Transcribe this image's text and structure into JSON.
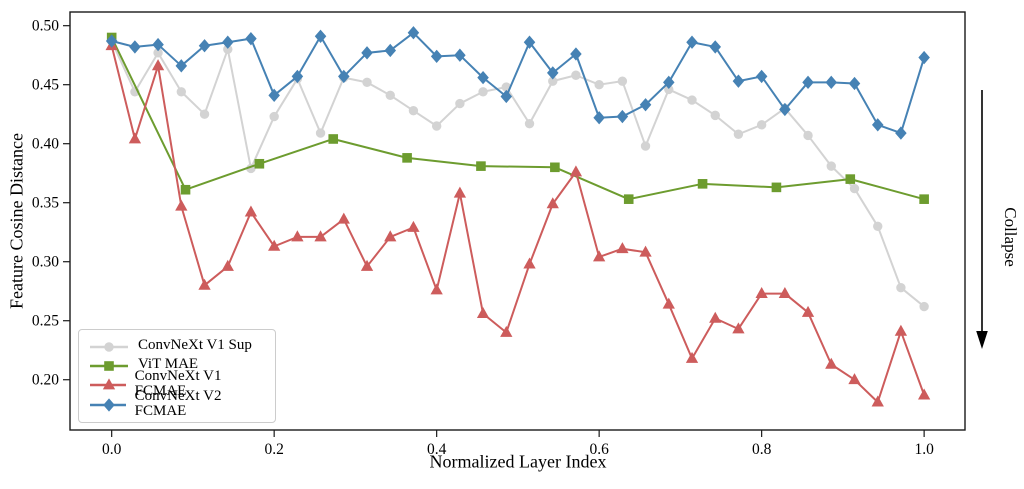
{
  "figure": {
    "ylabel": "Feature Cosine Distance",
    "xlabel": "Normalized Layer Index",
    "collapse_label": "Collapse"
  },
  "chart_data": {
    "type": "line",
    "title": "",
    "xlabel": "Normalized Layer Index",
    "ylabel": "Feature Cosine Distance",
    "xlim": [
      -0.0513,
      1.0503
    ],
    "ylim": [
      0.1574,
      0.5116
    ],
    "grid": false,
    "legend_position": "lower left",
    "annotation": {
      "text": "Collapse",
      "arrow_direction": "down",
      "side": "right"
    },
    "axis_color": "#1a1a1a",
    "xticks": {
      "values": [
        0.0,
        0.2,
        0.4,
        0.6,
        0.8,
        1.0
      ],
      "labels": [
        "0.0",
        "0.2",
        "0.4",
        "0.6",
        "0.8",
        "1.0"
      ]
    },
    "yticks": {
      "values": [
        0.2,
        0.25,
        0.3,
        0.35,
        0.4,
        0.45,
        0.5
      ],
      "labels": [
        "0.20",
        "0.25",
        "0.30",
        "0.35",
        "0.40",
        "0.45",
        "0.50"
      ]
    },
    "series": [
      {
        "name": "ConvNeXt V1 Sup",
        "color": "#d3d3d3",
        "marker": "circle",
        "x": [
          0.0,
          0.0286,
          0.0571,
          0.0857,
          0.1143,
          0.1429,
          0.1714,
          0.2,
          0.2286,
          0.2571,
          0.2857,
          0.3143,
          0.3429,
          0.3714,
          0.4,
          0.4286,
          0.4571,
          0.4857,
          0.5143,
          0.5429,
          0.5714,
          0.6,
          0.6286,
          0.6571,
          0.6857,
          0.7143,
          0.7429,
          0.7714,
          0.8,
          0.8286,
          0.8571,
          0.8857,
          0.9143,
          0.9429,
          0.9714,
          1.0
        ],
        "y": [
          0.487,
          0.444,
          0.477,
          0.444,
          0.425,
          0.48,
          0.379,
          0.423,
          0.455,
          0.409,
          0.456,
          0.452,
          0.441,
          0.428,
          0.415,
          0.434,
          0.444,
          0.448,
          0.417,
          0.453,
          0.458,
          0.45,
          0.453,
          0.398,
          0.446,
          0.437,
          0.424,
          0.408,
          0.416,
          0.43,
          0.407,
          0.381,
          0.362,
          0.33,
          0.278,
          0.262
        ]
      },
      {
        "name": "ViT MAE",
        "color": "#6d9c2f",
        "marker": "square",
        "x": [
          0.0,
          0.0909,
          0.1818,
          0.2727,
          0.3636,
          0.4545,
          0.5455,
          0.6364,
          0.7273,
          0.8182,
          0.9091,
          1.0
        ],
        "y": [
          0.49,
          0.361,
          0.383,
          0.404,
          0.388,
          0.381,
          0.38,
          0.353,
          0.366,
          0.363,
          0.37,
          0.353
        ]
      },
      {
        "name": "ConvNeXt V1 FCMAE",
        "color": "#cd5c5c",
        "marker": "triangle",
        "x": [
          0.0,
          0.0286,
          0.0571,
          0.0857,
          0.1143,
          0.1429,
          0.1714,
          0.2,
          0.2286,
          0.2571,
          0.2857,
          0.3143,
          0.3429,
          0.3714,
          0.4,
          0.4286,
          0.4571,
          0.4857,
          0.5143,
          0.5429,
          0.5714,
          0.6,
          0.6286,
          0.6571,
          0.6857,
          0.7143,
          0.7429,
          0.7714,
          0.8,
          0.8286,
          0.8571,
          0.8857,
          0.9143,
          0.9429,
          0.9714,
          1.0
        ],
        "y": [
          0.483,
          0.404,
          0.466,
          0.347,
          0.28,
          0.296,
          0.342,
          0.313,
          0.321,
          0.321,
          0.336,
          0.296,
          0.321,
          0.329,
          0.276,
          0.358,
          0.256,
          0.24,
          0.298,
          0.349,
          0.376,
          0.304,
          0.311,
          0.308,
          0.264,
          0.218,
          0.252,
          0.243,
          0.273,
          0.273,
          0.257,
          0.213,
          0.2,
          0.181,
          0.241,
          0.187
        ]
      },
      {
        "name": "ConvNeXt V2 FCMAE",
        "color": "#4682b4",
        "marker": "diamond",
        "x": [
          0.0,
          0.0286,
          0.0571,
          0.0857,
          0.1143,
          0.1429,
          0.1714,
          0.2,
          0.2286,
          0.2571,
          0.2857,
          0.3143,
          0.3429,
          0.3714,
          0.4,
          0.4286,
          0.4571,
          0.4857,
          0.5143,
          0.5429,
          0.5714,
          0.6,
          0.6286,
          0.6571,
          0.6857,
          0.7143,
          0.7429,
          0.7714,
          0.8,
          0.8286,
          0.8571,
          0.8857,
          0.9143,
          0.9429,
          0.9714,
          1.0
        ],
        "y": [
          0.487,
          0.482,
          0.484,
          0.466,
          0.483,
          0.486,
          0.489,
          0.441,
          0.457,
          0.491,
          0.457,
          0.477,
          0.479,
          0.494,
          0.474,
          0.475,
          0.456,
          0.44,
          0.486,
          0.46,
          0.476,
          0.422,
          0.423,
          0.433,
          0.452,
          0.486,
          0.482,
          0.453,
          0.457,
          0.429,
          0.452,
          0.452,
          0.451,
          0.416,
          0.409,
          0.473
        ]
      }
    ]
  }
}
